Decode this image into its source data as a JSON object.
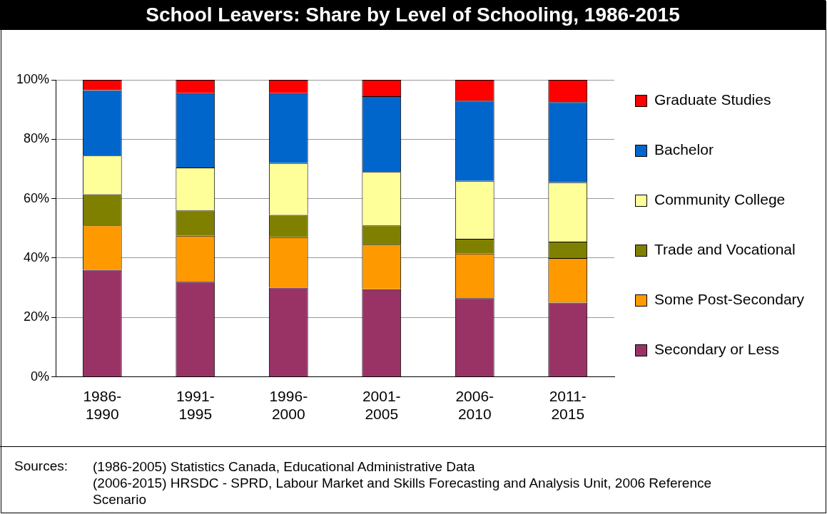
{
  "chart_data": {
    "type": "bar",
    "title": "School Leavers: Share by Level of Schooling, 1986-2015",
    "categories": [
      "1986-1990",
      "1991-1995",
      "1996-2000",
      "2001-2005",
      "2006-2010",
      "2011-2015"
    ],
    "stacked": true,
    "series": [
      {
        "name": "Secondary or Less",
        "color": "#993366",
        "values": [
          36,
          32,
          30,
          29.5,
          26.5,
          25
        ]
      },
      {
        "name": "Some Post-Secondary",
        "color": "#ff9900",
        "values": [
          15,
          15.5,
          17,
          15,
          15,
          15
        ]
      },
      {
        "name": "Trade and Vocational",
        "color": "#808000",
        "values": [
          10.5,
          8.5,
          7.5,
          6.5,
          5,
          5.5
        ]
      },
      {
        "name": "Community College",
        "color": "#ffff99",
        "values": [
          13,
          14.5,
          17.5,
          18,
          19.5,
          20
        ]
      },
      {
        "name": "Bachelor",
        "color": "#0066cc",
        "values": [
          22,
          25,
          23.5,
          25.5,
          27,
          27
        ]
      },
      {
        "name": "Graduate Studies",
        "color": "#ff0000",
        "values": [
          3.5,
          4.5,
          4.5,
          5.5,
          7,
          7.5
        ]
      }
    ],
    "ylim": [
      0,
      100
    ],
    "yticks": [
      {
        "value": 0,
        "label": "0%"
      },
      {
        "value": 20,
        "label": "20%"
      },
      {
        "value": 40,
        "label": "40%"
      },
      {
        "value": 60,
        "label": "60%"
      },
      {
        "value": 80,
        "label": "80%"
      },
      {
        "value": 100,
        "label": "100%"
      }
    ],
    "grid": "y",
    "legend": "right",
    "annotations": [
      "Sources:",
      "(1986-2005)  Statistics Canada, Educational Administrative Data",
      "(2006-2015)  HRSDC - SPRD, Labour Market and Skills Forecasting and Analysis Unit, 2006 Reference Scenario"
    ]
  }
}
